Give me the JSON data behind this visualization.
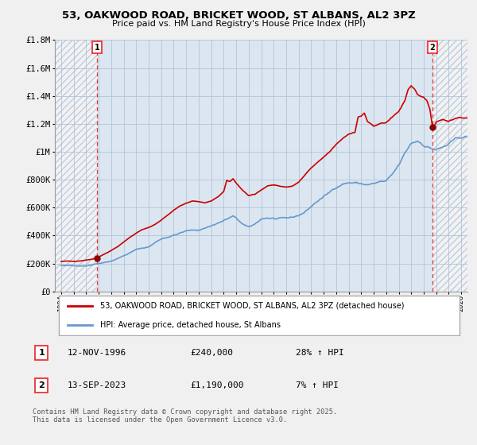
{
  "title": "53, OAKWOOD ROAD, BRICKET WOOD, ST ALBANS, AL2 3PZ",
  "subtitle": "Price paid vs. HM Land Registry's House Price Index (HPI)",
  "ylim": [
    0,
    1800000
  ],
  "xlim": [
    1993.5,
    2026.5
  ],
  "yticks": [
    0,
    200000,
    400000,
    600000,
    800000,
    1000000,
    1200000,
    1400000,
    1600000,
    1800000
  ],
  "ytick_labels": [
    "£0",
    "£200K",
    "£400K",
    "£600K",
    "£800K",
    "£1M",
    "£1.2M",
    "£1.4M",
    "£1.6M",
    "£1.8M"
  ],
  "bg_color": "#f0f0f0",
  "plot_bg_color": "#dce6f0",
  "grid_color": "#b0c4d8",
  "red_line_color": "#cc0000",
  "blue_line_color": "#6699cc",
  "vline_color": "#ee3333",
  "vline1_x": 1996.87,
  "vline2_x": 2023.71,
  "marker1_x": 1996.87,
  "marker1_y": 240000,
  "marker2_x": 2023.71,
  "marker2_y": 1190000,
  "legend_label1": "53, OAKWOOD ROAD, BRICKET WOOD, ST ALBANS, AL2 3PZ (detached house)",
  "legend_label2": "HPI: Average price, detached house, St Albans",
  "note1_date": "12-NOV-1996",
  "note1_price": "£240,000",
  "note1_hpi": "28% ↑ HPI",
  "note2_date": "13-SEP-2023",
  "note2_price": "£1,190,000",
  "note2_hpi": "7% ↑ HPI",
  "footer": "Contains HM Land Registry data © Crown copyright and database right 2025.\nThis data is licensed under the Open Government Licence v3.0."
}
